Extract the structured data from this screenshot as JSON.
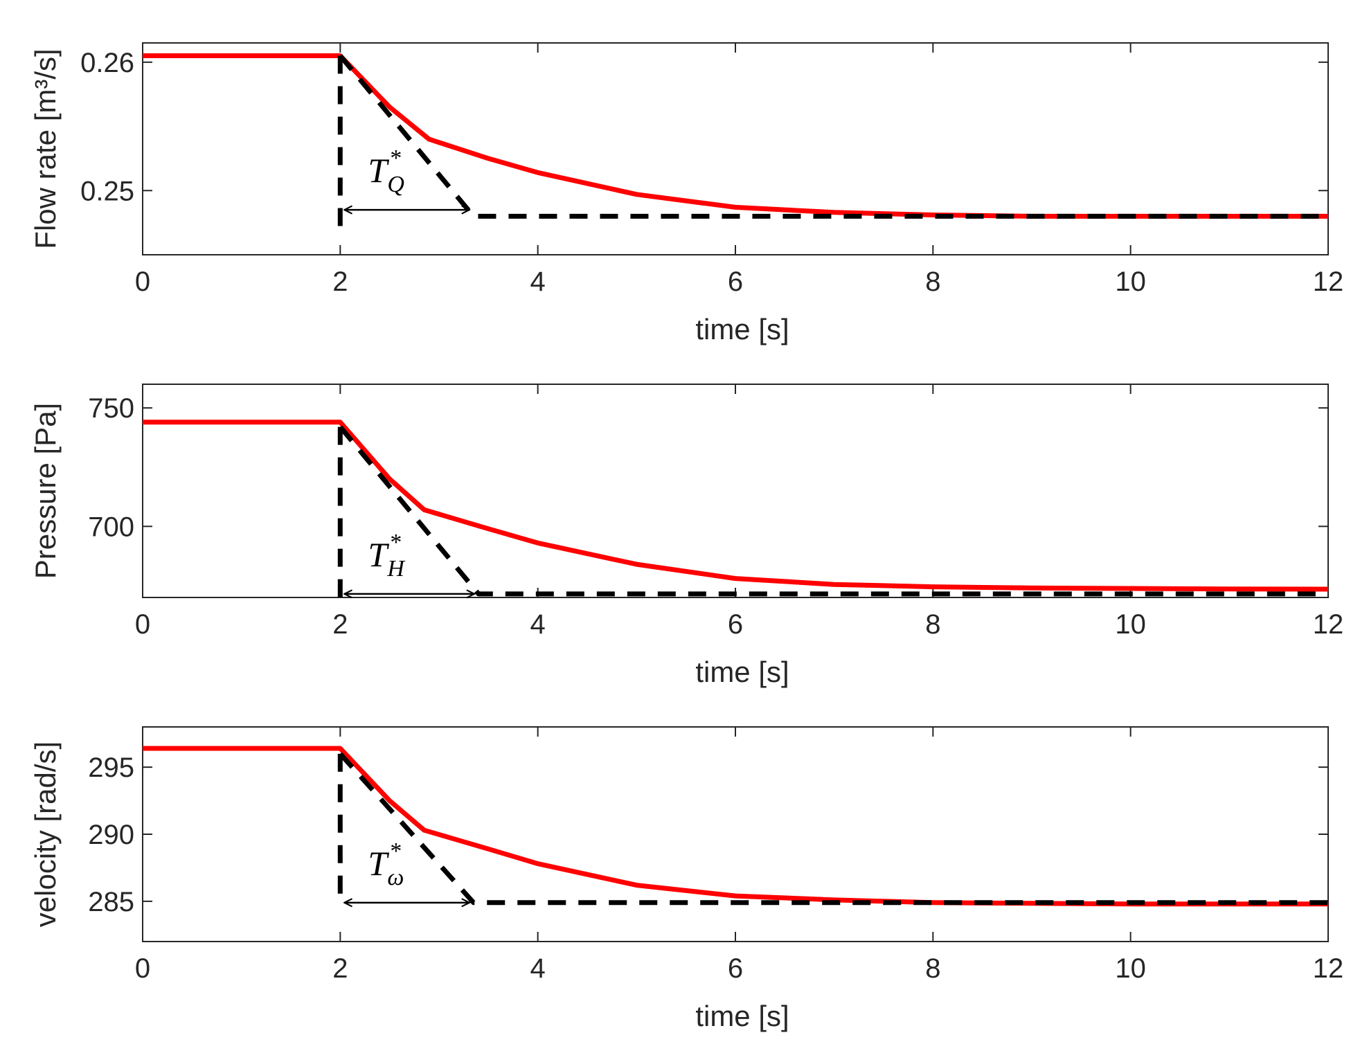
{
  "chart_data": [
    {
      "type": "line",
      "xlabel": "time [s]",
      "ylabel": "Flow rate [m³/s]",
      "xlim": [
        0,
        12
      ],
      "ylim": [
        0.245,
        0.2615
      ],
      "xticks": [
        "0",
        "2",
        "4",
        "6",
        "8",
        "10",
        "12"
      ],
      "yticks": [
        "0.25",
        "0.26"
      ],
      "grid": false,
      "annotation": {
        "symbol": "T",
        "subscript": "Q",
        "superscript": "*",
        "t_start": 2,
        "t_end": 3.35
      },
      "series": [
        {
          "color": "#ff0000",
          "style": "solid",
          "x": [
            0,
            2,
            2.5,
            2.9,
            3.5,
            4,
            5,
            6,
            7,
            8,
            9,
            10,
            11,
            12
          ],
          "y": [
            0.2605,
            0.2605,
            0.2565,
            0.254,
            0.2525,
            0.2514,
            0.2497,
            0.2487,
            0.2483,
            0.2481,
            0.248,
            0.248,
            0.248,
            0.248
          ]
        },
        {
          "color": "#000000",
          "style": "dashed",
          "x": [
            2,
            3.35,
            12
          ],
          "y": [
            0.2605,
            0.248,
            0.248
          ]
        },
        {
          "color": "#000000",
          "style": "dashed",
          "x": [
            2,
            2
          ],
          "y": [
            0.2605,
            0.2471
          ]
        }
      ]
    },
    {
      "type": "line",
      "xlabel": "time [s]",
      "ylabel": "Pressure [Pa]",
      "xlim": [
        0,
        12
      ],
      "ylim": [
        670,
        760
      ],
      "xticks": [
        "0",
        "2",
        "4",
        "6",
        "8",
        "10",
        "12"
      ],
      "yticks": [
        "700",
        "750"
      ],
      "grid": false,
      "annotation": {
        "symbol": "T",
        "subscript": "H",
        "superscript": "*",
        "t_start": 2,
        "t_end": 3.4
      },
      "series": [
        {
          "color": "#ff0000",
          "style": "solid",
          "x": [
            0,
            2,
            2.5,
            2.85,
            3.5,
            4,
            5,
            6,
            7,
            8,
            9,
            10,
            11,
            12
          ],
          "y": [
            744,
            744,
            720,
            707,
            699,
            693,
            684,
            678,
            675.5,
            674.5,
            674,
            673.8,
            673.6,
            673.5
          ]
        },
        {
          "color": "#000000",
          "style": "dashed",
          "x": [
            2,
            3.4,
            12
          ],
          "y": [
            742,
            671.5,
            671.5
          ]
        },
        {
          "color": "#000000",
          "style": "dashed",
          "x": [
            2,
            2
          ],
          "y": [
            742,
            670
          ]
        }
      ]
    },
    {
      "type": "line",
      "xlabel": "time [s]",
      "ylabel": "velocity [rad/s]",
      "xlim": [
        0,
        12
      ],
      "ylim": [
        282,
        298
      ],
      "xticks": [
        "0",
        "2",
        "4",
        "6",
        "8",
        "10",
        "12"
      ],
      "yticks": [
        "285",
        "290",
        "295"
      ],
      "grid": false,
      "annotation": {
        "symbol": "T",
        "subscript": "ω",
        "superscript": "*",
        "t_start": 2,
        "t_end": 3.35
      },
      "series": [
        {
          "color": "#ff0000",
          "style": "solid",
          "x": [
            0,
            2,
            2.5,
            2.85,
            3.5,
            4,
            5,
            6,
            7,
            8,
            9,
            10,
            11,
            12
          ],
          "y": [
            296.4,
            296.4,
            292.5,
            290.3,
            288.9,
            287.8,
            286.2,
            285.4,
            285.1,
            284.9,
            284.85,
            284.8,
            284.8,
            284.8
          ]
        },
        {
          "color": "#000000",
          "style": "dashed",
          "x": [
            2,
            3.35,
            12
          ],
          "y": [
            296,
            284.9,
            284.9
          ]
        },
        {
          "color": "#000000",
          "style": "dashed",
          "x": [
            2,
            2
          ],
          "y": [
            296,
            284.9
          ]
        }
      ]
    }
  ]
}
